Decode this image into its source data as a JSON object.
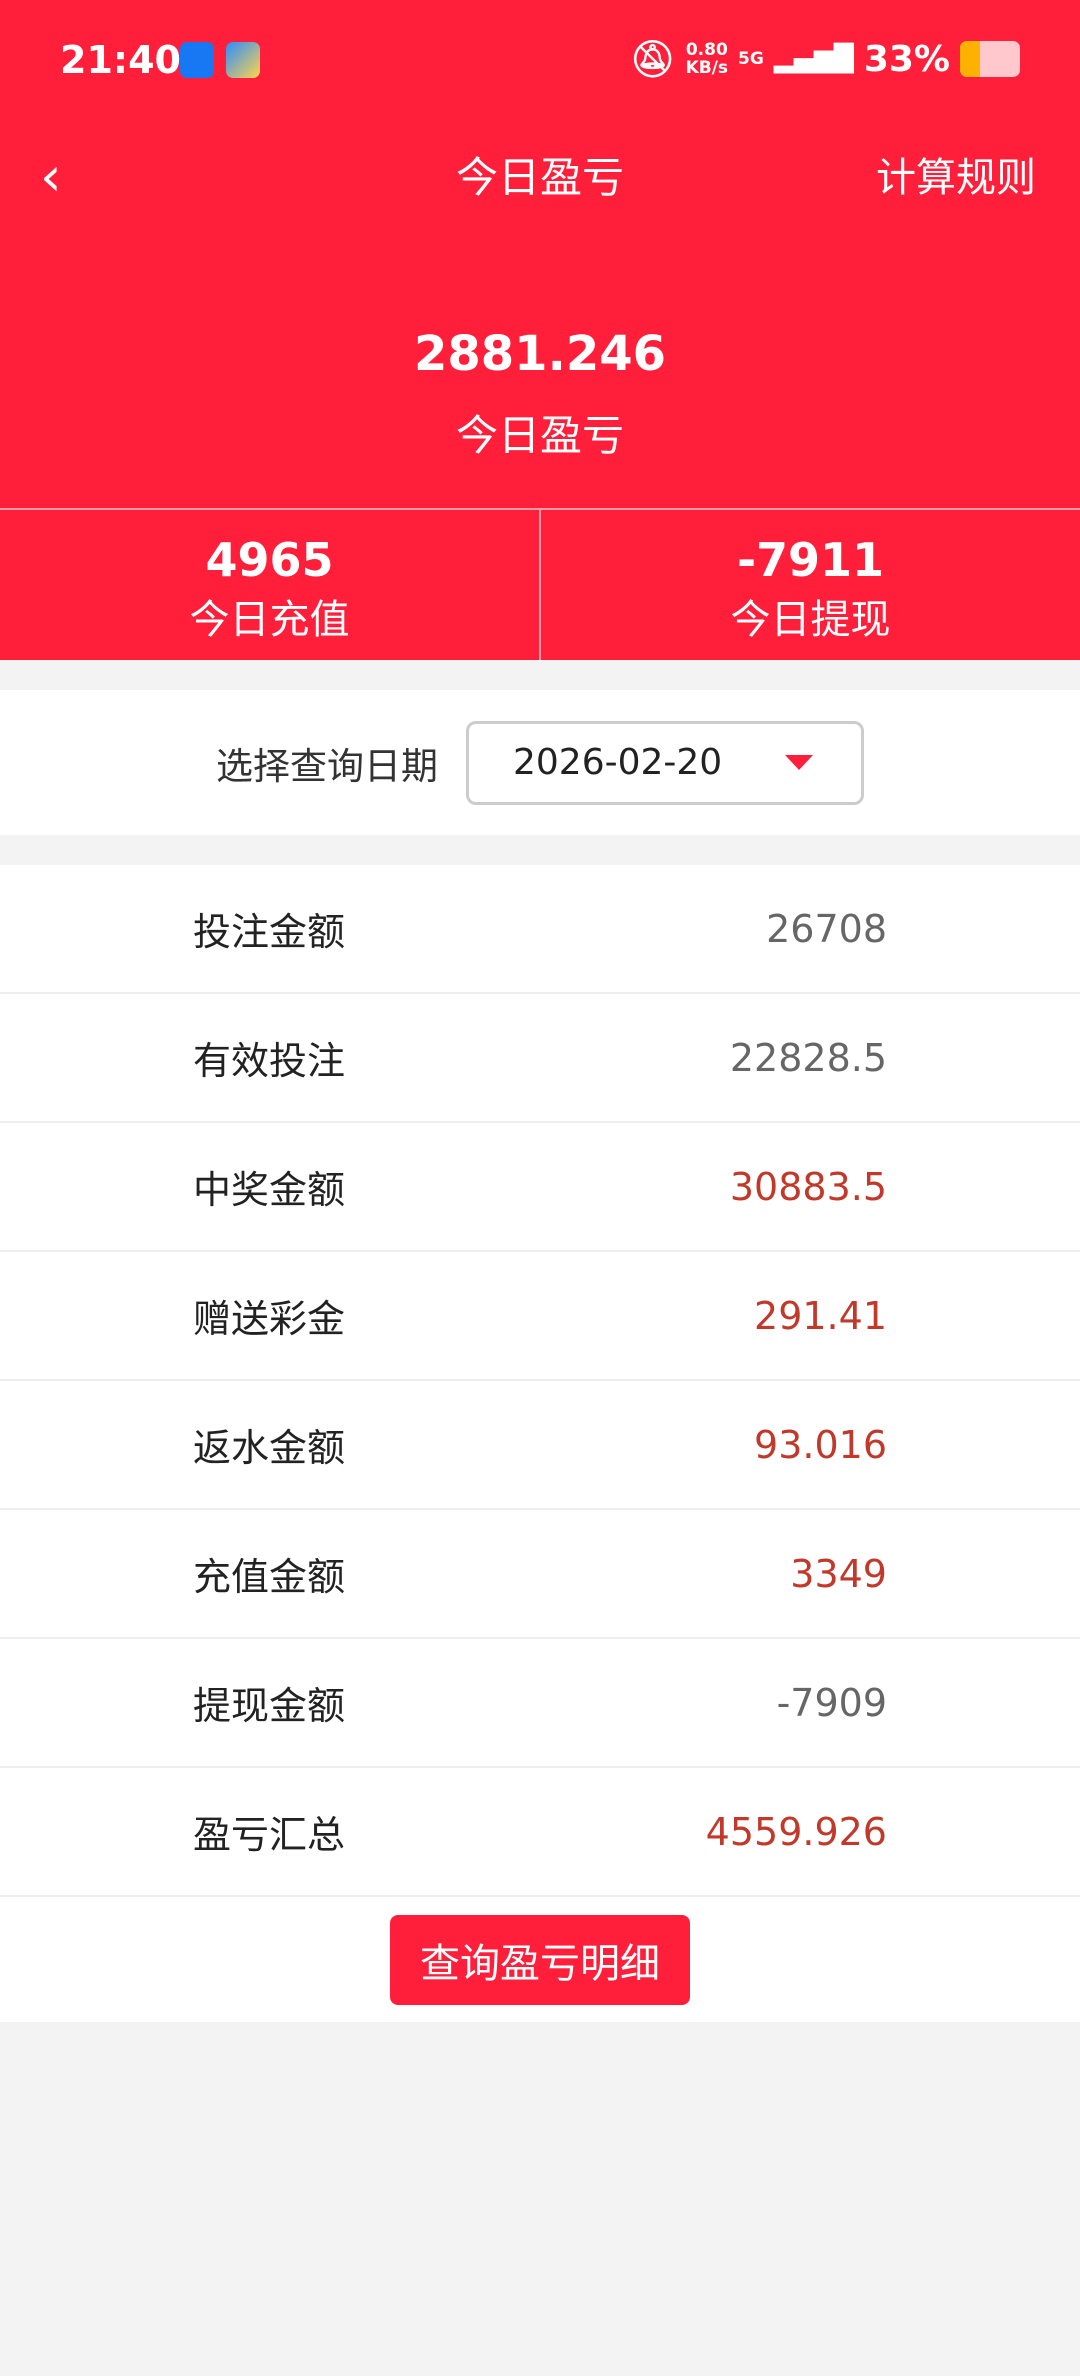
{
  "status_bar": {
    "time": "21:40",
    "net_speed": "0.80",
    "net_unit": "KB/s",
    "network": "5G",
    "battery": "33%",
    "battery_level": 33
  },
  "nav": {
    "back_icon": "chevron-left-icon",
    "title": "今日盈亏",
    "rule_link": "计算规则"
  },
  "summary": {
    "value": "2881.246",
    "label": "今日盈亏"
  },
  "stats": [
    {
      "value": "4965",
      "label": "今日充值"
    },
    {
      "value": "-7911",
      "label": "今日提现"
    }
  ],
  "date_filter": {
    "label": "选择查询日期",
    "value": "2026-02-20"
  },
  "rows": [
    {
      "label": "投注金额",
      "value": "26708",
      "highlight": false
    },
    {
      "label": "有效投注",
      "value": "22828.5",
      "highlight": false
    },
    {
      "label": "中奖金额",
      "value": "30883.5",
      "highlight": true
    },
    {
      "label": "赠送彩金",
      "value": "291.41",
      "highlight": true
    },
    {
      "label": "返水金额",
      "value": "93.016",
      "highlight": true
    },
    {
      "label": "充值金额",
      "value": "3349",
      "highlight": true
    },
    {
      "label": "提现金额",
      "value": "-7909",
      "highlight": false
    },
    {
      "label": "盈亏汇总",
      "value": "4559.926",
      "highlight": true
    }
  ],
  "detail_button": "查询盈亏明细",
  "colors": {
    "brand": "#ff1f3a",
    "value_red": "#c0392b",
    "value_gray": "#666666"
  }
}
